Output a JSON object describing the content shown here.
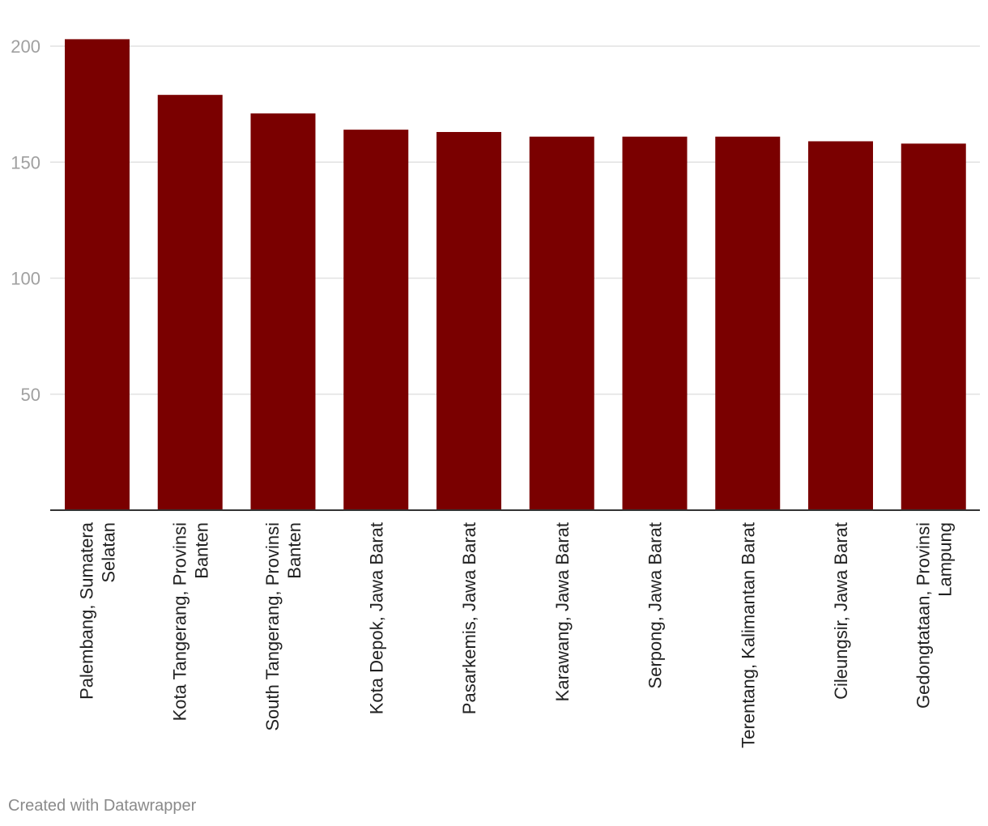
{
  "chart_data": {
    "type": "bar",
    "categories": [
      "Palembang, Sumatera Selatan",
      "Kota Tangerang, Provinsi Banten",
      "South Tangerang, Provinsi Banten",
      "Kota Depok, Jawa Barat",
      "Pasarkemis, Jawa Barat",
      "Karawang, Jawa Barat",
      "Serpong, Jawa Barat",
      "Terentang, Kalimantan Barat",
      "Cileungsir, Jawa Barat",
      "Gedongtataan, Provinsi Lampung"
    ],
    "category_lines": [
      [
        "Palembang, Sumatera",
        "Selatan"
      ],
      [
        "Kota Tangerang, Provinsi",
        "Banten"
      ],
      [
        "South Tangerang, Provinsi",
        "Banten"
      ],
      [
        "Kota Depok, Jawa Barat"
      ],
      [
        "Pasarkemis, Jawa Barat"
      ],
      [
        "Karawang, Jawa Barat"
      ],
      [
        "Serpong, Jawa Barat"
      ],
      [
        "Terentang, Kalimantan Barat"
      ],
      [
        "Cileungsir, Jawa Barat"
      ],
      [
        "Gedongtataan, Provinsi",
        "Lampung"
      ]
    ],
    "values": [
      203,
      179,
      171,
      164,
      163,
      161,
      161,
      161,
      159,
      158
    ],
    "ylim": [
      0,
      200
    ],
    "yticks": [
      50,
      100,
      150,
      200
    ],
    "grid": true,
    "title": "",
    "xlabel": "",
    "ylabel": "",
    "colors": {
      "bar": "#7a0000",
      "grid": "#e2e2e2",
      "axis": "#333333",
      "tick_label": "#a0a0a0",
      "category_label": "#222222"
    }
  },
  "footer": {
    "credit": "Created with Datawrapper"
  }
}
